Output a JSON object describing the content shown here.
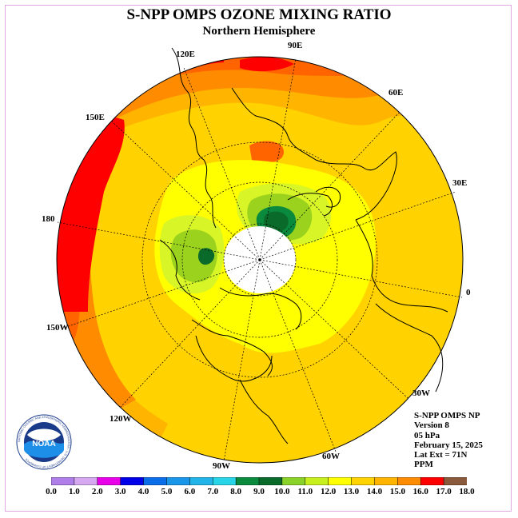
{
  "title": "S-NPP OMPS OZONE MIXING RATIO",
  "subtitle": "Northern Hemisphere",
  "longitude_labels": {
    "e120": "120E",
    "e90": "90E",
    "e60": "60E",
    "e150": "150E",
    "e30": "30E",
    "d180": "180",
    "d0": "0",
    "w150": "150W",
    "w30": "30W",
    "w120": "120W",
    "w60": "60W",
    "w90": "90W"
  },
  "info": {
    "instrument": "S-NPP OMPS NP",
    "version": "Version 8",
    "level": "05 hPa",
    "date": "February 15, 2025",
    "lat_ext": "Lat Ext = 71N",
    "units": "PPM"
  },
  "colorbar": {
    "ticks": [
      "0.0",
      "1.0",
      "2.0",
      "3.0",
      "4.0",
      "5.0",
      "6.0",
      "7.0",
      "8.0",
      "9.0",
      "10.0",
      "11.0",
      "12.0",
      "13.0",
      "14.0",
      "15.0",
      "16.0",
      "17.0",
      "18.0"
    ],
    "colors": [
      "#b07ee8",
      "#d6a8f0",
      "#e800e8",
      "#0000e8",
      "#0a6ee8",
      "#1a96e8",
      "#22b4e8",
      "#28d4e8",
      "#0a8a3c",
      "#0a6a2a",
      "#8ad22a",
      "#c8f01e",
      "#ffff00",
      "#ffd200",
      "#ffb400",
      "#ff8c00",
      "#ff0000",
      "#8b5a3c"
    ]
  },
  "logo": {
    "text": "NOAA",
    "ring_text": "NATIONAL OCEANIC AND ATMOSPHERIC ADMINISTRATION · U.S. DEPARTMENT OF COMMERCE"
  },
  "colors": {
    "c11": "#9ad21e",
    "c12": "#d8f528",
    "c13": "#ffff00",
    "c14": "#ffd200",
    "c145": "#ffb400",
    "c15": "#ff8c00",
    "c155": "#ff6400",
    "c16": "#ff0000",
    "c9": "#0a8a3c",
    "c10": "#0a6a2a",
    "coast": "#000000"
  }
}
